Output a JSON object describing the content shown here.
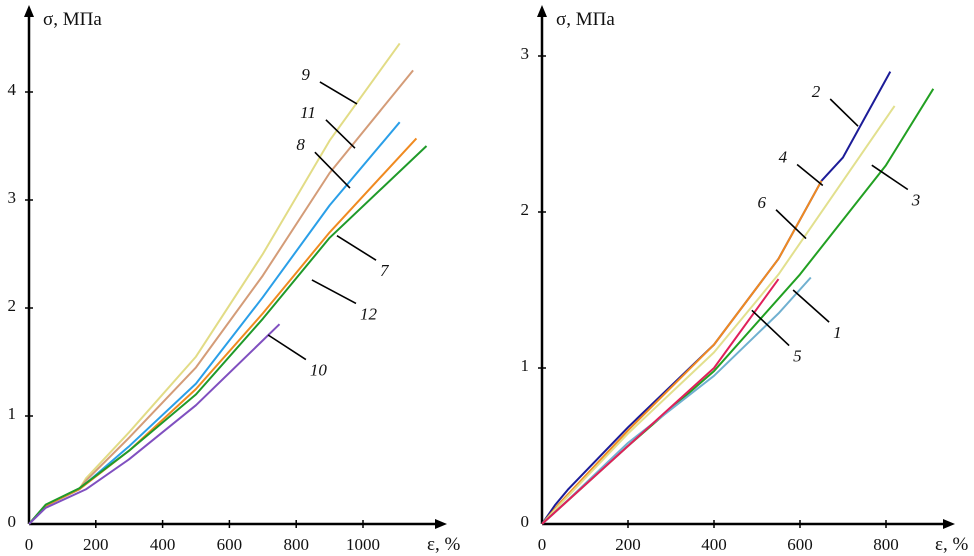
{
  "chart_data": [
    {
      "type": "line",
      "xlabel": "ε, %",
      "ylabel": "σ, МПа",
      "xlim": [
        0,
        1250
      ],
      "ylim": [
        0,
        4.8
      ],
      "xticks": [
        "0",
        "200",
        "400",
        "600",
        "800",
        "1000"
      ],
      "xtick_values": [
        0,
        200,
        400,
        600,
        800,
        1000
      ],
      "yticks": [
        "0",
        "1",
        "2",
        "3",
        "4"
      ],
      "ytick_values": [
        0,
        1,
        2,
        3,
        4
      ],
      "grid": false,
      "series": [
        {
          "name": "9",
          "color": "#e2dc86",
          "points": [
            [
              0,
              0
            ],
            [
              50,
              0.17
            ],
            [
              150,
              0.32
            ],
            [
              170,
              0.42
            ],
            [
              300,
              0.85
            ],
            [
              500,
              1.55
            ],
            [
              700,
              2.5
            ],
            [
              900,
              3.55
            ],
            [
              1110,
              4.45
            ]
          ],
          "label_at": [
            841,
            4.13
          ],
          "leader_to": [
            982,
            3.89
          ]
        },
        {
          "name": "11",
          "color": "#d49c78",
          "points": [
            [
              0,
              0
            ],
            [
              50,
              0.17
            ],
            [
              150,
              0.32
            ],
            [
              170,
              0.4
            ],
            [
              300,
              0.8
            ],
            [
              500,
              1.45
            ],
            [
              700,
              2.3
            ],
            [
              900,
              3.25
            ],
            [
              1150,
              4.2
            ]
          ],
          "label_at": [
            859,
            3.78
          ],
          "leader_to": [
            976,
            3.48
          ]
        },
        {
          "name": "8",
          "color": "#2a9fe8",
          "points": [
            [
              0,
              0
            ],
            [
              50,
              0.17
            ],
            [
              150,
              0.32
            ],
            [
              300,
              0.72
            ],
            [
              500,
              1.3
            ],
            [
              700,
              2.1
            ],
            [
              900,
              2.95
            ],
            [
              1110,
              3.72
            ]
          ],
          "label_at": [
            826,
            3.48
          ],
          "leader_to": [
            961,
            3.11
          ]
        },
        {
          "name": "7",
          "color": "#f08a20",
          "points": [
            [
              0,
              0
            ],
            [
              50,
              0.17
            ],
            [
              150,
              0.32
            ],
            [
              300,
              0.68
            ],
            [
              500,
              1.25
            ],
            [
              700,
              1.95
            ],
            [
              900,
              2.7
            ],
            [
              1160,
              3.57
            ]
          ],
          "label_at": [
            1051,
            2.35
          ],
          "leader_to": [
            922,
            2.67
          ]
        },
        {
          "name": "12",
          "color": "#1f9a2a",
          "points": [
            [
              0,
              0
            ],
            [
              50,
              0.18
            ],
            [
              150,
              0.33
            ],
            [
              300,
              0.68
            ],
            [
              500,
              1.2
            ],
            [
              700,
              1.9
            ],
            [
              900,
              2.65
            ],
            [
              1190,
              3.5
            ]
          ],
          "label_at": [
            991,
            1.95
          ],
          "leader_to": [
            847,
            2.26
          ]
        },
        {
          "name": "10",
          "color": "#8050c0",
          "points": [
            [
              0,
              0
            ],
            [
              50,
              0.15
            ],
            [
              170,
              0.32
            ],
            [
              300,
              0.6
            ],
            [
              500,
              1.1
            ],
            [
              750,
              1.85
            ]
          ],
          "label_at": [
            841,
            1.43
          ],
          "leader_to": [
            716,
            1.75
          ]
        }
      ]
    },
    {
      "type": "line",
      "xlabel": "ε, %",
      "ylabel": "σ, МПа",
      "xlim": [
        0,
        960
      ],
      "ylim": [
        0,
        3.35
      ],
      "xticks": [
        "0",
        "200",
        "400",
        "600",
        "800"
      ],
      "xtick_values": [
        0,
        200,
        400,
        600,
        800
      ],
      "yticks": [
        "0",
        "1",
        "2",
        "3"
      ],
      "ytick_values": [
        0,
        1,
        2,
        3
      ],
      "grid": false,
      "series": [
        {
          "name": "2",
          "color": "#1c1c98",
          "points": [
            [
              0,
              0
            ],
            [
              30,
              0.12
            ],
            [
              60,
              0.22
            ],
            [
              200,
              0.62
            ],
            [
              400,
              1.15
            ],
            [
              550,
              1.7
            ],
            [
              650,
              2.2
            ],
            [
              700,
              2.35
            ],
            [
              750,
              2.6
            ],
            [
              810,
              2.9
            ]
          ],
          "label_at": [
            647,
            2.75
          ],
          "leader_to": [
            735,
            2.55
          ]
        },
        {
          "name": "4",
          "color": "#f08a20",
          "points": [
            [
              0,
              0
            ],
            [
              40,
              0.13
            ],
            [
              200,
              0.6
            ],
            [
              400,
              1.15
            ],
            [
              550,
              1.7
            ],
            [
              650,
              2.2
            ]
          ],
          "label_at": [
            570,
            2.33
          ],
          "leader_to": [
            653,
            2.17
          ]
        },
        {
          "name": "6",
          "color": "#e2e08e",
          "points": [
            [
              0,
              0
            ],
            [
              40,
              0.12
            ],
            [
              200,
              0.58
            ],
            [
              400,
              1.1
            ],
            [
              550,
              1.6
            ],
            [
              700,
              2.2
            ],
            [
              820,
              2.68
            ]
          ],
          "label_at": [
            521,
            2.04
          ],
          "leader_to": [
            614,
            1.83
          ]
        },
        {
          "name": "3",
          "color": "#22a022",
          "points": [
            [
              0,
              0
            ],
            [
              40,
              0.1
            ],
            [
              200,
              0.5
            ],
            [
              400,
              0.98
            ],
            [
              600,
              1.6
            ],
            [
              800,
              2.3
            ],
            [
              910,
              2.79
            ]
          ],
          "label_at": [
            860,
            2.08
          ],
          "leader_to": [
            767,
            2.3
          ]
        },
        {
          "name": "1",
          "color": "#70b0d0",
          "points": [
            [
              0,
              0
            ],
            [
              40,
              0.1
            ],
            [
              200,
              0.52
            ],
            [
              400,
              0.95
            ],
            [
              550,
              1.35
            ],
            [
              625,
              1.58
            ]
          ],
          "label_at": [
            677,
            1.23
          ],
          "leader_to": [
            584,
            1.5
          ]
        },
        {
          "name": "5",
          "color": "#e0205a",
          "points": [
            [
              0,
              0
            ],
            [
              40,
              0.1
            ],
            [
              100,
              0.25
            ],
            [
              200,
              0.5
            ],
            [
              400,
              1.0
            ],
            [
              550,
              1.57
            ]
          ],
          "label_at": [
            584,
            1.08
          ],
          "leader_to": [
            488,
            1.37
          ]
        }
      ]
    }
  ]
}
